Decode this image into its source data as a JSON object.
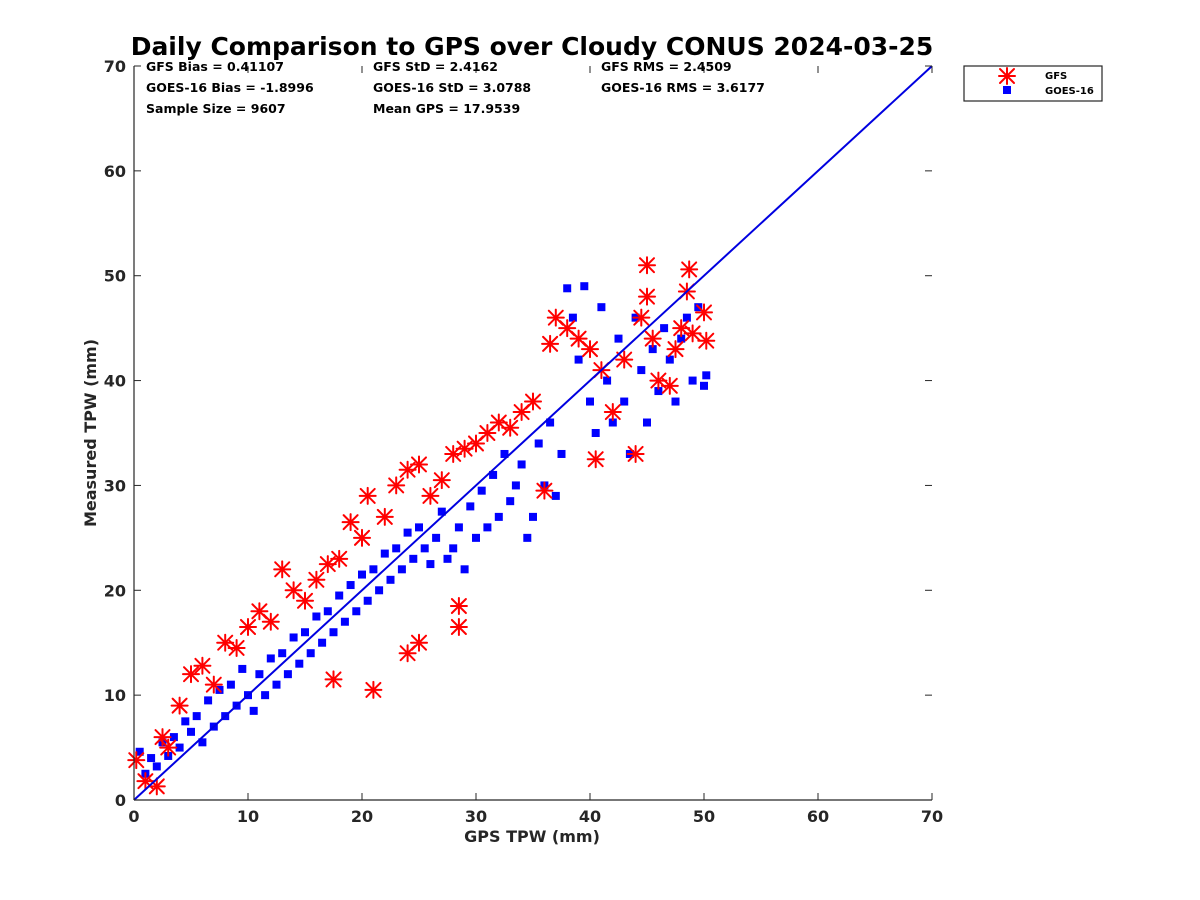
{
  "chart_data": {
    "type": "scatter",
    "title": "Daily Comparison to GPS over Cloudy CONUS 2024-03-25",
    "xlabel": "GPS TPW (mm)",
    "ylabel": "Measured TPW (mm)",
    "xlim": [
      0,
      70
    ],
    "ylim": [
      0,
      70
    ],
    "xticks": [
      0,
      10,
      20,
      30,
      40,
      50,
      60,
      70
    ],
    "yticks": [
      0,
      10,
      20,
      30,
      40,
      50,
      60,
      70
    ],
    "legend": {
      "position": "outside-top-right",
      "entries": [
        "GFS",
        "GOES-16"
      ]
    },
    "reference_line": {
      "name": "1:1 line",
      "x": [
        0,
        70
      ],
      "y": [
        0,
        70
      ],
      "color": "#0000e0"
    },
    "stats": [
      "GFS Bias = 0.41107",
      "GFS StD = 2.4162",
      "GFS RMS = 2.4509",
      "GOES-16 Bias = -1.8996",
      "GOES-16 StD = 3.0788",
      "GOES-16 RMS = 3.6177",
      "Sample Size = 9607",
      "Mean GPS = 17.9539"
    ],
    "series": [
      {
        "name": "GOES-16",
        "marker": "square",
        "color": "#0000ff",
        "points": [
          [
            0.5,
            4.6
          ],
          [
            1,
            2.5
          ],
          [
            1.5,
            4
          ],
          [
            2,
            3.2
          ],
          [
            2.5,
            5.5
          ],
          [
            3,
            4.2
          ],
          [
            3.5,
            6
          ],
          [
            4,
            5
          ],
          [
            4.5,
            7.5
          ],
          [
            5,
            6.5
          ],
          [
            5.5,
            8
          ],
          [
            6,
            5.5
          ],
          [
            6.5,
            9.5
          ],
          [
            7,
            7
          ],
          [
            7.5,
            10.5
          ],
          [
            8,
            8
          ],
          [
            8.5,
            11
          ],
          [
            9,
            9
          ],
          [
            9.5,
            12.5
          ],
          [
            10,
            10
          ],
          [
            10.5,
            8.5
          ],
          [
            11,
            12
          ],
          [
            11.5,
            10
          ],
          [
            12,
            13.5
          ],
          [
            12.5,
            11
          ],
          [
            13,
            14
          ],
          [
            13.5,
            12
          ],
          [
            14,
            15.5
          ],
          [
            14.5,
            13
          ],
          [
            15,
            16
          ],
          [
            15.5,
            14
          ],
          [
            16,
            17.5
          ],
          [
            16.5,
            15
          ],
          [
            17,
            18
          ],
          [
            17.5,
            16
          ],
          [
            18,
            19.5
          ],
          [
            18.5,
            17
          ],
          [
            19,
            20.5
          ],
          [
            19.5,
            18
          ],
          [
            20,
            21.5
          ],
          [
            20.5,
            19
          ],
          [
            21,
            22
          ],
          [
            21.5,
            20
          ],
          [
            22,
            23.5
          ],
          [
            22.5,
            21
          ],
          [
            23,
            24
          ],
          [
            23.5,
            22
          ],
          [
            24,
            25.5
          ],
          [
            24.5,
            23
          ],
          [
            25,
            26
          ],
          [
            25.5,
            24
          ],
          [
            26,
            22.5
          ],
          [
            26.5,
            25
          ],
          [
            27,
            27.5
          ],
          [
            27.5,
            23
          ],
          [
            28,
            24
          ],
          [
            28.5,
            26
          ],
          [
            29,
            22
          ],
          [
            29.5,
            28
          ],
          [
            30,
            25
          ],
          [
            30.5,
            29.5
          ],
          [
            31,
            26
          ],
          [
            31.5,
            31
          ],
          [
            32,
            27
          ],
          [
            32.5,
            33
          ],
          [
            33,
            28.5
          ],
          [
            33.5,
            30
          ],
          [
            34,
            32
          ],
          [
            34.5,
            25
          ],
          [
            35,
            27
          ],
          [
            35.5,
            34
          ],
          [
            36,
            30
          ],
          [
            36.5,
            36
          ],
          [
            37,
            29
          ],
          [
            37.5,
            33
          ],
          [
            38,
            48.8
          ],
          [
            38.5,
            46
          ],
          [
            39,
            42
          ],
          [
            39.5,
            49
          ],
          [
            40,
            38
          ],
          [
            40.5,
            35
          ],
          [
            41,
            47
          ],
          [
            41.5,
            40
          ],
          [
            42,
            36
          ],
          [
            42.5,
            44
          ],
          [
            43,
            38
          ],
          [
            43.5,
            33
          ],
          [
            44,
            46
          ],
          [
            44.5,
            41
          ],
          [
            45,
            36
          ],
          [
            45.5,
            43
          ],
          [
            46,
            39
          ],
          [
            46.5,
            45
          ],
          [
            47,
            42
          ],
          [
            47.5,
            38
          ],
          [
            48,
            44
          ],
          [
            48.5,
            46
          ],
          [
            49,
            40
          ],
          [
            49.5,
            47
          ],
          [
            50,
            39.5
          ],
          [
            50.2,
            40.5
          ]
        ]
      },
      {
        "name": "GFS",
        "marker": "asterisk",
        "color": "#ff0000",
        "points": [
          [
            0.2,
            3.8
          ],
          [
            1,
            1.8
          ],
          [
            2,
            1.3
          ],
          [
            2.5,
            6
          ],
          [
            3,
            5
          ],
          [
            4,
            9
          ],
          [
            5,
            12
          ],
          [
            6,
            12.8
          ],
          [
            7,
            11
          ],
          [
            8,
            15
          ],
          [
            9,
            14.5
          ],
          [
            10,
            16.5
          ],
          [
            11,
            18
          ],
          [
            12,
            17
          ],
          [
            13,
            22
          ],
          [
            14,
            20
          ],
          [
            15,
            19
          ],
          [
            16,
            21
          ],
          [
            17,
            22.5
          ],
          [
            17.5,
            11.5
          ],
          [
            18,
            23
          ],
          [
            19,
            26.5
          ],
          [
            20,
            25
          ],
          [
            20.5,
            29
          ],
          [
            21,
            10.5
          ],
          [
            22,
            27
          ],
          [
            23,
            30
          ],
          [
            24,
            14
          ],
          [
            24,
            31.5
          ],
          [
            25,
            15
          ],
          [
            25,
            32
          ],
          [
            26,
            29
          ],
          [
            27,
            30.5
          ],
          [
            28,
            33
          ],
          [
            28.5,
            16.5
          ],
          [
            28.5,
            18.5
          ],
          [
            29,
            33.5
          ],
          [
            30,
            34
          ],
          [
            31,
            35
          ],
          [
            32,
            36
          ],
          [
            33,
            35.5
          ],
          [
            34,
            37
          ],
          [
            35,
            38
          ],
          [
            36,
            29.5
          ],
          [
            36.5,
            43.5
          ],
          [
            37,
            46
          ],
          [
            38,
            45
          ],
          [
            39,
            44
          ],
          [
            40,
            43
          ],
          [
            40.5,
            32.5
          ],
          [
            41,
            41
          ],
          [
            42,
            37
          ],
          [
            43,
            42
          ],
          [
            44,
            33
          ],
          [
            44.5,
            46
          ],
          [
            45,
            51
          ],
          [
            45,
            48
          ],
          [
            45.5,
            44
          ],
          [
            46,
            40
          ],
          [
            47,
            39.5
          ],
          [
            47.5,
            43
          ],
          [
            48,
            45
          ],
          [
            48.5,
            48.5
          ],
          [
            48.7,
            50.6
          ],
          [
            49,
            44.5
          ],
          [
            50,
            46.5
          ],
          [
            50.2,
            43.8
          ]
        ]
      }
    ]
  }
}
